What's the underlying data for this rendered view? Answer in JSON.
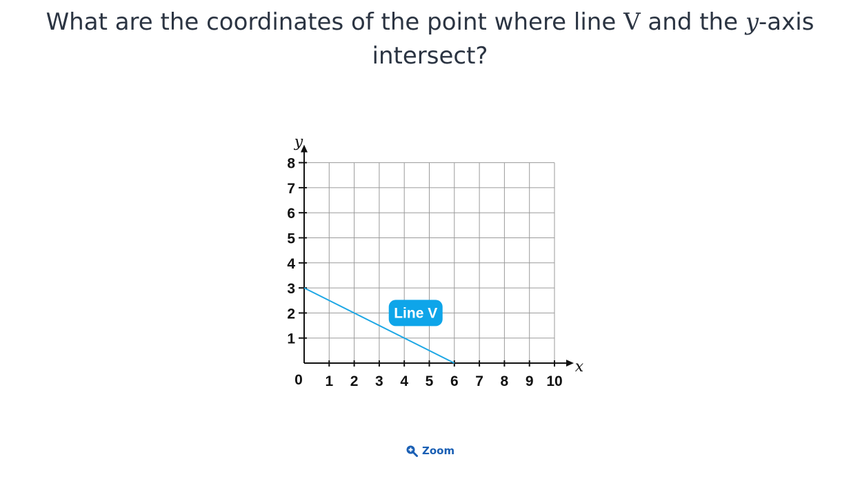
{
  "question": {
    "prefix": "What are the coordinates of the point where line ",
    "line_name": "V",
    "middle": " and the ",
    "axis_var": "y",
    "suffix_line1": "-axis",
    "suffix_line2": "intersect?"
  },
  "chart_data": {
    "type": "line",
    "xlabel": "x",
    "ylabel": "y",
    "xlim": [
      0,
      10
    ],
    "ylim": [
      0,
      8
    ],
    "x_ticks": [
      "1",
      "2",
      "3",
      "4",
      "5",
      "6",
      "7",
      "8",
      "9",
      "10"
    ],
    "y_ticks": [
      "1",
      "2",
      "3",
      "4",
      "5",
      "6",
      "7",
      "8"
    ],
    "origin_label": "0",
    "grid": true,
    "series": [
      {
        "name": "Line V",
        "x": [
          0,
          6
        ],
        "y": [
          3,
          0
        ],
        "color": "#1ea7e4"
      }
    ]
  },
  "colors": {
    "line": "#1ea7e4",
    "label_bg": "#0ea5e9",
    "grid": "#9a9a9a",
    "axis": "#111111",
    "text": "#2b3442",
    "link": "#1a5fb4"
  },
  "zoom": {
    "label": "Zoom",
    "icon": "zoom-in-icon"
  }
}
